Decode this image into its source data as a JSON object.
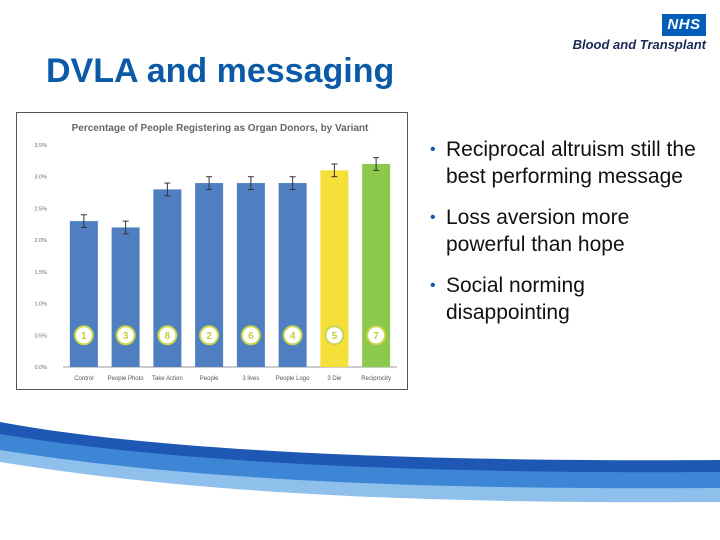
{
  "slide": {
    "title": "DVLA and messaging",
    "bullets": [
      "Reciprocal altruism still the best performing message",
      "Loss aversion more powerful than hope",
      "Social norming disappointing"
    ],
    "bullet_glyph": "•"
  },
  "logo": {
    "nhs": "NHS",
    "org": "Blood and Transplant",
    "color": "#005eb8"
  },
  "chart_data": {
    "type": "bar",
    "title": "Percentage of People Registering as Organ Donors, by Variant",
    "categories": [
      "Control",
      "People Photo",
      "Take Action",
      "People",
      "3 lives",
      "People Logo",
      "3 Die",
      "Reciprocity"
    ],
    "values": [
      2.3,
      2.2,
      2.8,
      2.9,
      2.9,
      2.9,
      3.1,
      3.2
    ],
    "error": [
      0.1,
      0.1,
      0.1,
      0.1,
      0.1,
      0.1,
      0.1,
      0.1
    ],
    "badges": [
      "1",
      "3",
      "8",
      "2",
      "6",
      "4",
      "5",
      "7"
    ],
    "colors": [
      "#4f7fc0",
      "#4f7fc0",
      "#4f7fc0",
      "#4f7fc0",
      "#4f7fc0",
      "#4f7fc0",
      "#f5e03a",
      "#8cc84b"
    ],
    "yticks": [
      "0.0%",
      "0.5%",
      "1.0%",
      "1.5%",
      "2.0%",
      "2.5%",
      "3.0%",
      "3.5%"
    ],
    "ylim": [
      0,
      3.5
    ],
    "grid": false
  }
}
